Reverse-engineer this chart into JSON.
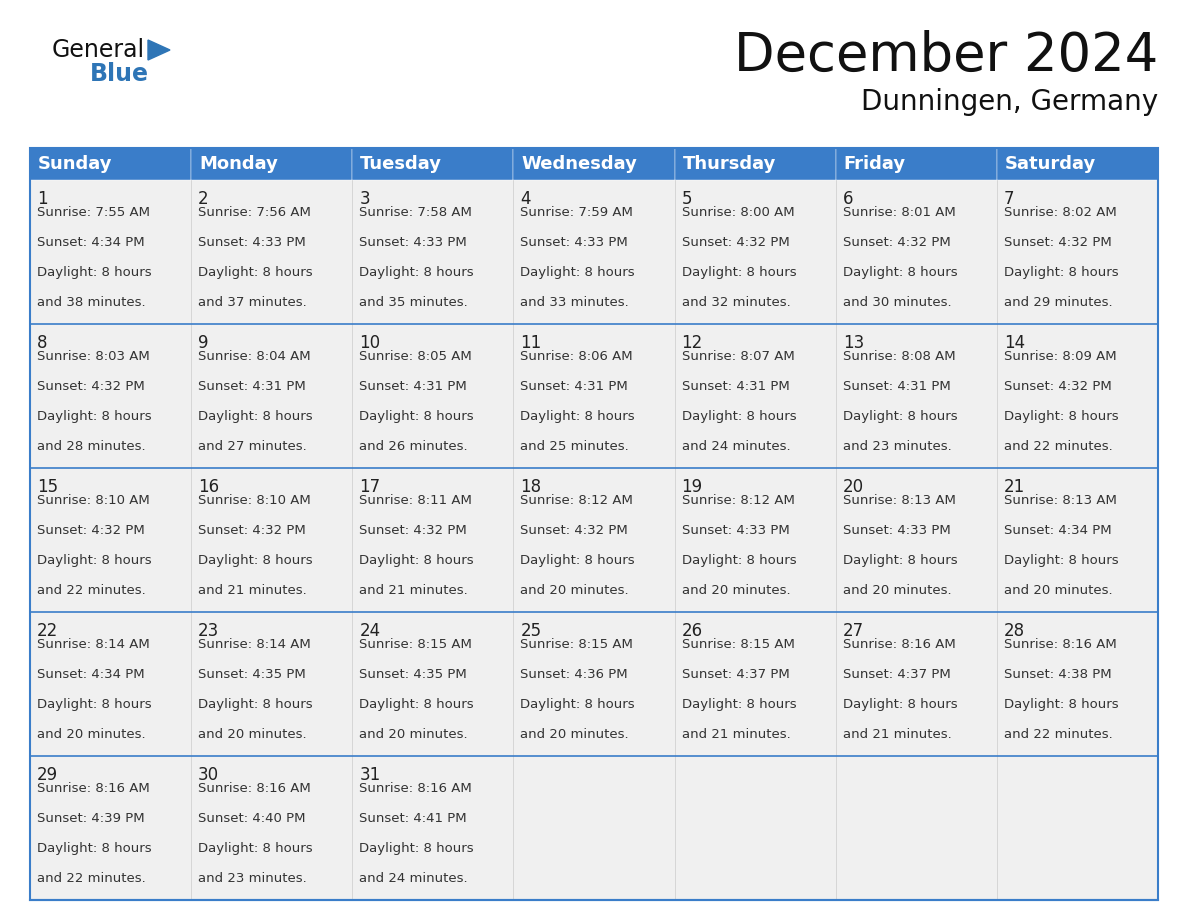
{
  "title": "December 2024",
  "subtitle": "Dunningen, Germany",
  "header_color": "#3A7DC9",
  "header_text_color": "#FFFFFF",
  "cell_bg_color": "#F0F0F0",
  "cell_empty_bg": "#FFFFFF",
  "row_separator_color": "#3A7DC9",
  "col_separator_color": "#CCCCCC",
  "outer_border_color": "#3A7DC9",
  "day_headers": [
    "Sunday",
    "Monday",
    "Tuesday",
    "Wednesday",
    "Thursday",
    "Friday",
    "Saturday"
  ],
  "title_fontsize": 38,
  "subtitle_fontsize": 20,
  "header_fontsize": 13,
  "day_num_fontsize": 12,
  "cell_fontsize": 9.5,
  "logo_general_fontsize": 17,
  "logo_blue_fontsize": 17,
  "weeks": [
    [
      {
        "day": 1,
        "sunrise": "7:55 AM",
        "sunset": "4:34 PM",
        "daylight": "8 hours",
        "daylight2": "and 38 minutes."
      },
      {
        "day": 2,
        "sunrise": "7:56 AM",
        "sunset": "4:33 PM",
        "daylight": "8 hours",
        "daylight2": "and 37 minutes."
      },
      {
        "day": 3,
        "sunrise": "7:58 AM",
        "sunset": "4:33 PM",
        "daylight": "8 hours",
        "daylight2": "and 35 minutes."
      },
      {
        "day": 4,
        "sunrise": "7:59 AM",
        "sunset": "4:33 PM",
        "daylight": "8 hours",
        "daylight2": "and 33 minutes."
      },
      {
        "day": 5,
        "sunrise": "8:00 AM",
        "sunset": "4:32 PM",
        "daylight": "8 hours",
        "daylight2": "and 32 minutes."
      },
      {
        "day": 6,
        "sunrise": "8:01 AM",
        "sunset": "4:32 PM",
        "daylight": "8 hours",
        "daylight2": "and 30 minutes."
      },
      {
        "day": 7,
        "sunrise": "8:02 AM",
        "sunset": "4:32 PM",
        "daylight": "8 hours",
        "daylight2": "and 29 minutes."
      }
    ],
    [
      {
        "day": 8,
        "sunrise": "8:03 AM",
        "sunset": "4:32 PM",
        "daylight": "8 hours",
        "daylight2": "and 28 minutes."
      },
      {
        "day": 9,
        "sunrise": "8:04 AM",
        "sunset": "4:31 PM",
        "daylight": "8 hours",
        "daylight2": "and 27 minutes."
      },
      {
        "day": 10,
        "sunrise": "8:05 AM",
        "sunset": "4:31 PM",
        "daylight": "8 hours",
        "daylight2": "and 26 minutes."
      },
      {
        "day": 11,
        "sunrise": "8:06 AM",
        "sunset": "4:31 PM",
        "daylight": "8 hours",
        "daylight2": "and 25 minutes."
      },
      {
        "day": 12,
        "sunrise": "8:07 AM",
        "sunset": "4:31 PM",
        "daylight": "8 hours",
        "daylight2": "and 24 minutes."
      },
      {
        "day": 13,
        "sunrise": "8:08 AM",
        "sunset": "4:31 PM",
        "daylight": "8 hours",
        "daylight2": "and 23 minutes."
      },
      {
        "day": 14,
        "sunrise": "8:09 AM",
        "sunset": "4:32 PM",
        "daylight": "8 hours",
        "daylight2": "and 22 minutes."
      }
    ],
    [
      {
        "day": 15,
        "sunrise": "8:10 AM",
        "sunset": "4:32 PM",
        "daylight": "8 hours",
        "daylight2": "and 22 minutes."
      },
      {
        "day": 16,
        "sunrise": "8:10 AM",
        "sunset": "4:32 PM",
        "daylight": "8 hours",
        "daylight2": "and 21 minutes."
      },
      {
        "day": 17,
        "sunrise": "8:11 AM",
        "sunset": "4:32 PM",
        "daylight": "8 hours",
        "daylight2": "and 21 minutes."
      },
      {
        "day": 18,
        "sunrise": "8:12 AM",
        "sunset": "4:32 PM",
        "daylight": "8 hours",
        "daylight2": "and 20 minutes."
      },
      {
        "day": 19,
        "sunrise": "8:12 AM",
        "sunset": "4:33 PM",
        "daylight": "8 hours",
        "daylight2": "and 20 minutes."
      },
      {
        "day": 20,
        "sunrise": "8:13 AM",
        "sunset": "4:33 PM",
        "daylight": "8 hours",
        "daylight2": "and 20 minutes."
      },
      {
        "day": 21,
        "sunrise": "8:13 AM",
        "sunset": "4:34 PM",
        "daylight": "8 hours",
        "daylight2": "and 20 minutes."
      }
    ],
    [
      {
        "day": 22,
        "sunrise": "8:14 AM",
        "sunset": "4:34 PM",
        "daylight": "8 hours",
        "daylight2": "and 20 minutes."
      },
      {
        "day": 23,
        "sunrise": "8:14 AM",
        "sunset": "4:35 PM",
        "daylight": "8 hours",
        "daylight2": "and 20 minutes."
      },
      {
        "day": 24,
        "sunrise": "8:15 AM",
        "sunset": "4:35 PM",
        "daylight": "8 hours",
        "daylight2": "and 20 minutes."
      },
      {
        "day": 25,
        "sunrise": "8:15 AM",
        "sunset": "4:36 PM",
        "daylight": "8 hours",
        "daylight2": "and 20 minutes."
      },
      {
        "day": 26,
        "sunrise": "8:15 AM",
        "sunset": "4:37 PM",
        "daylight": "8 hours",
        "daylight2": "and 21 minutes."
      },
      {
        "day": 27,
        "sunrise": "8:16 AM",
        "sunset": "4:37 PM",
        "daylight": "8 hours",
        "daylight2": "and 21 minutes."
      },
      {
        "day": 28,
        "sunrise": "8:16 AM",
        "sunset": "4:38 PM",
        "daylight": "8 hours",
        "daylight2": "and 22 minutes."
      }
    ],
    [
      {
        "day": 29,
        "sunrise": "8:16 AM",
        "sunset": "4:39 PM",
        "daylight": "8 hours",
        "daylight2": "and 22 minutes."
      },
      {
        "day": 30,
        "sunrise": "8:16 AM",
        "sunset": "4:40 PM",
        "daylight": "8 hours",
        "daylight2": "and 23 minutes."
      },
      {
        "day": 31,
        "sunrise": "8:16 AM",
        "sunset": "4:41 PM",
        "daylight": "8 hours",
        "daylight2": "and 24 minutes."
      },
      null,
      null,
      null,
      null
    ]
  ]
}
